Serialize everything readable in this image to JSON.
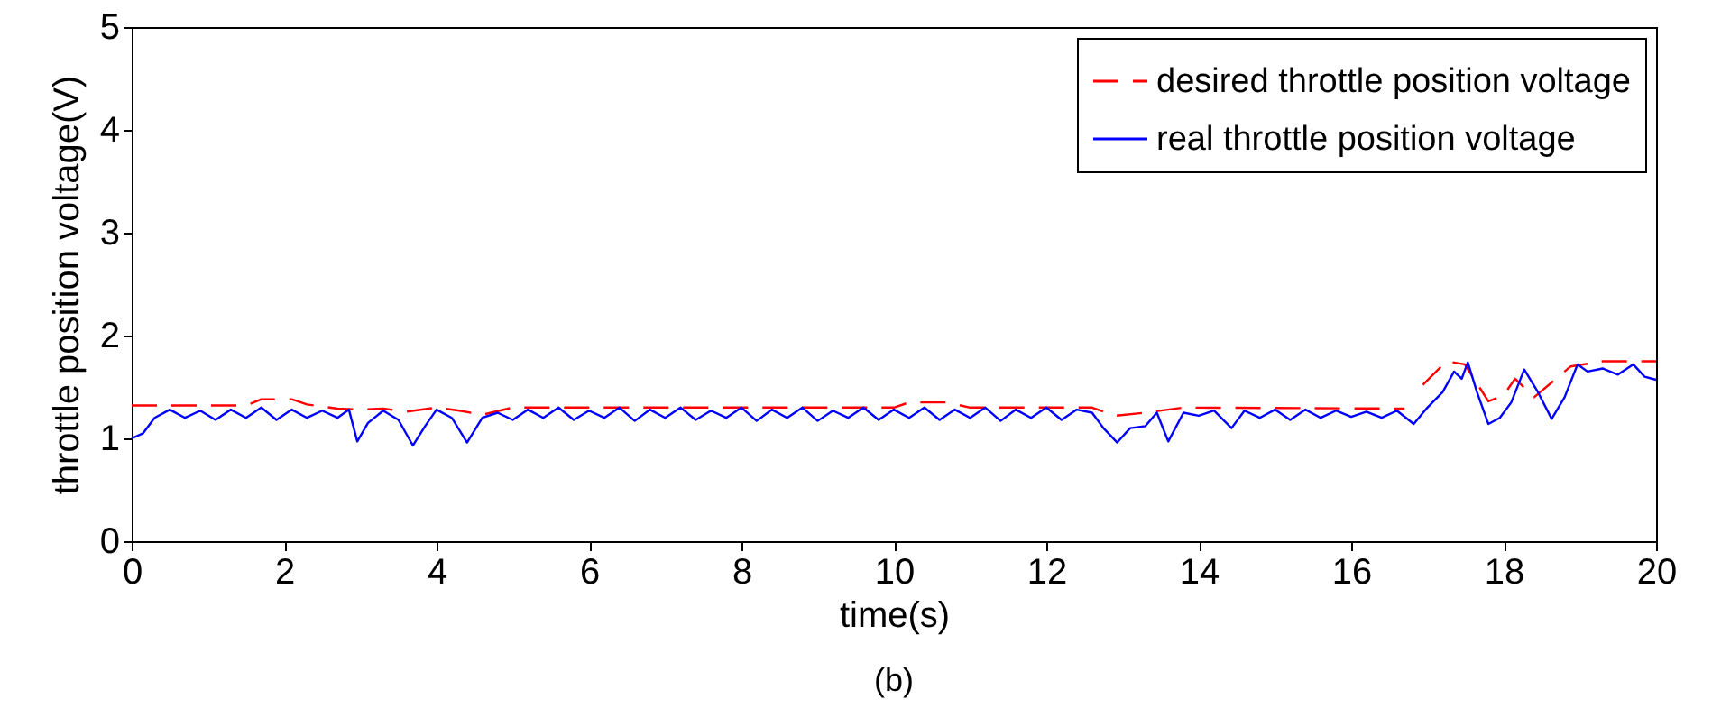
{
  "chart_data": {
    "type": "line",
    "xlabel": "time(s)",
    "ylabel": "throttle position voltage(V)",
    "annotations": [
      "(b)"
    ],
    "xlim": [
      0,
      20
    ],
    "xticks": [
      0,
      2,
      4,
      6,
      8,
      10,
      12,
      14,
      16,
      18,
      20
    ],
    "ylim": [
      0,
      5
    ],
    "yticks": [
      0,
      1,
      2,
      3,
      4,
      5
    ],
    "legend": "top right",
    "grid": false,
    "series": [
      {
        "name": "desired throttle position voltage",
        "color": "#ff0000",
        "line_style": "dashed",
        "x": [
          0,
          1.5,
          1.7,
          2.1,
          2.3,
          2.7,
          3.0,
          3.3,
          3.6,
          4.0,
          4.3,
          4.6,
          5.0,
          10.0,
          10.2,
          10.7,
          11.0,
          12.6,
          12.9,
          13.3,
          13.8,
          16.7,
          16.8,
          16.94,
          17.25,
          17.49,
          17.8,
          18.0,
          18.15,
          18.4,
          18.88,
          19.3,
          20
        ],
        "values": [
          1.32,
          1.32,
          1.38,
          1.38,
          1.33,
          1.29,
          1.28,
          1.29,
          1.26,
          1.3,
          1.27,
          1.23,
          1.3,
          1.3,
          1.35,
          1.35,
          1.3,
          1.3,
          1.22,
          1.25,
          1.3,
          1.29,
          null,
          1.52,
          1.75,
          1.72,
          1.36,
          1.42,
          1.58,
          1.4,
          1.7,
          1.75,
          1.75
        ]
      },
      {
        "name": "real throttle position voltage",
        "color": "#0000ff",
        "line_style": "solid",
        "x": [
          0,
          0.15,
          0.3,
          0.5,
          0.7,
          0.9,
          1.1,
          1.3,
          1.5,
          1.7,
          1.9,
          2.1,
          2.3,
          2.5,
          2.7,
          2.85,
          2.96,
          3.1,
          3.3,
          3.5,
          3.69,
          3.85,
          4.0,
          4.2,
          4.4,
          4.6,
          4.8,
          5.0,
          5.2,
          5.4,
          5.6,
          5.8,
          6.0,
          6.2,
          6.4,
          6.6,
          6.8,
          7.0,
          7.2,
          7.4,
          7.6,
          7.8,
          8.0,
          8.2,
          8.4,
          8.6,
          8.8,
          9.0,
          9.2,
          9.4,
          9.6,
          9.8,
          10.0,
          10.2,
          10.4,
          10.6,
          10.8,
          11.0,
          11.2,
          11.4,
          11.6,
          11.8,
          12.0,
          12.2,
          12.4,
          12.6,
          12.75,
          12.93,
          13.1,
          13.3,
          13.45,
          13.6,
          13.8,
          14.0,
          14.2,
          14.43,
          14.6,
          14.8,
          15.0,
          15.2,
          15.4,
          15.6,
          15.8,
          16.0,
          16.2,
          16.4,
          16.6,
          16.82,
          17.0,
          17.2,
          17.35,
          17.45,
          17.53,
          17.65,
          17.8,
          17.95,
          18.1,
          18.27,
          18.45,
          18.63,
          18.8,
          18.97,
          19.1,
          19.3,
          19.5,
          19.7,
          19.85,
          20.0
        ],
        "values": [
          1.0,
          1.05,
          1.2,
          1.28,
          1.2,
          1.27,
          1.18,
          1.28,
          1.2,
          1.3,
          1.18,
          1.28,
          1.2,
          1.27,
          1.2,
          1.28,
          0.97,
          1.15,
          1.27,
          1.18,
          0.93,
          1.12,
          1.28,
          1.2,
          0.96,
          1.2,
          1.25,
          1.18,
          1.28,
          1.2,
          1.3,
          1.18,
          1.27,
          1.2,
          1.3,
          1.17,
          1.28,
          1.2,
          1.3,
          1.18,
          1.27,
          1.2,
          1.3,
          1.17,
          1.28,
          1.2,
          1.3,
          1.17,
          1.27,
          1.2,
          1.3,
          1.18,
          1.28,
          1.2,
          1.3,
          1.18,
          1.28,
          1.2,
          1.3,
          1.17,
          1.28,
          1.2,
          1.3,
          1.18,
          1.28,
          1.25,
          1.1,
          0.96,
          1.1,
          1.12,
          1.25,
          0.97,
          1.25,
          1.22,
          1.27,
          1.1,
          1.27,
          1.2,
          1.28,
          1.18,
          1.28,
          1.2,
          1.27,
          1.21,
          1.26,
          1.2,
          1.27,
          1.14,
          1.3,
          1.45,
          1.65,
          1.58,
          1.74,
          1.45,
          1.14,
          1.2,
          1.35,
          1.67,
          1.45,
          1.19,
          1.4,
          1.72,
          1.65,
          1.68,
          1.62,
          1.72,
          1.6,
          1.57
        ]
      }
    ]
  }
}
